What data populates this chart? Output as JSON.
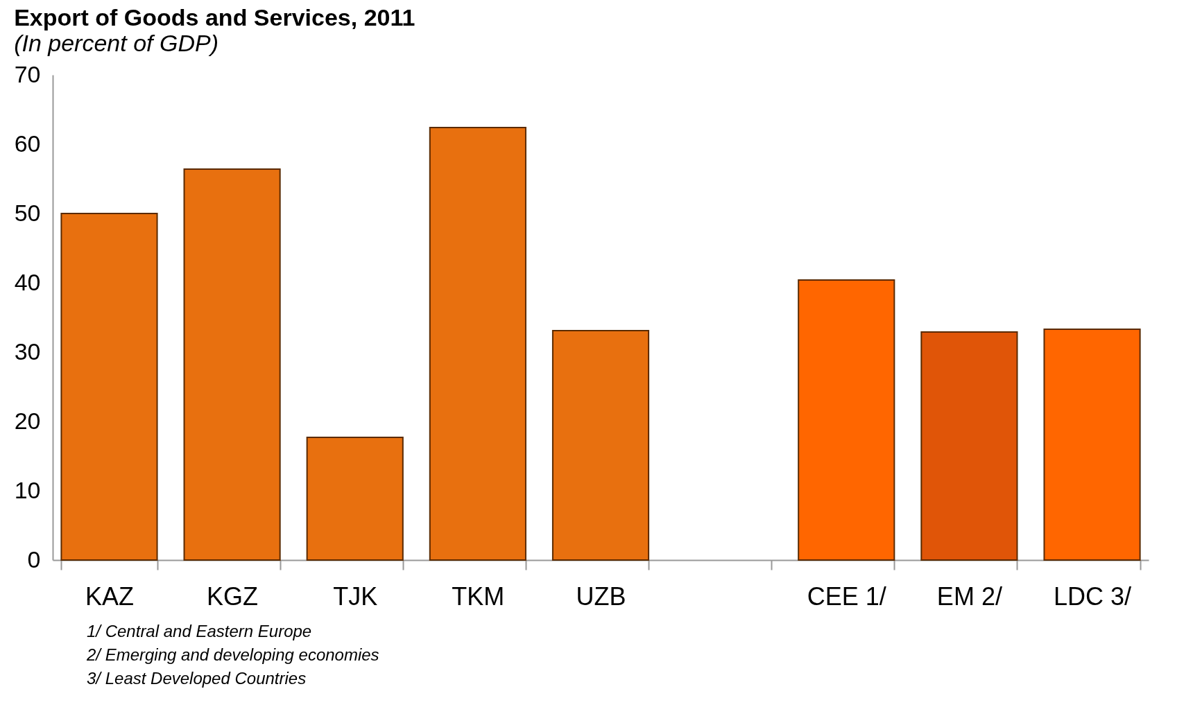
{
  "chart_data": {
    "type": "bar",
    "title": "Export of Goods and Services, 2011",
    "subtitle": "(In percent of GDP)",
    "categories": [
      "KAZ",
      "KGZ",
      "TJK",
      "TKM",
      "UZB",
      null,
      "CEE 1/",
      "EM 2/",
      "LDC 3/"
    ],
    "values": [
      50.0,
      56.4,
      17.7,
      62.4,
      33.1,
      null,
      40.4,
      32.9,
      33.3
    ],
    "colors": [
      "#e8700f",
      "#e8700f",
      "#e8700f",
      "#e8700f",
      "#e8700f",
      null,
      "#ff6600",
      "#e05508",
      "#ff6600"
    ],
    "ylim": [
      0,
      70
    ],
    "yticks": [
      0,
      10,
      20,
      30,
      40,
      50,
      60,
      70
    ],
    "grid": false,
    "legend": false,
    "annotations": [
      "1/ Central and Eastern Europe",
      "2/ Emerging and developing economies",
      "3/ Least Developed Countries"
    ]
  }
}
